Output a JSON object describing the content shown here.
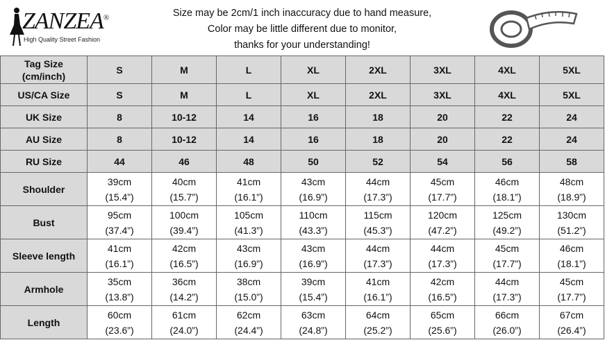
{
  "header": {
    "logo": "ZANZEA",
    "logo_mark": "®",
    "tagline": "High Quality Street Fashion",
    "notes": [
      "Size may be 2cm/1 inch inaccuracy due to hand measure,",
      "Color may be little different due to monitor,",
      "thanks for your understanding!"
    ]
  },
  "table": {
    "rows": [
      {
        "label": "Tag Size (cm/inch)",
        "cells": [
          "S",
          "M",
          "L",
          "XL",
          "2XL",
          "3XL",
          "4XL",
          "5XL"
        ]
      },
      {
        "label": "US/CA Size",
        "cells": [
          "S",
          "M",
          "L",
          "XL",
          "2XL",
          "3XL",
          "4XL",
          "5XL"
        ]
      },
      {
        "label": "UK Size",
        "cells": [
          "8",
          "10-12",
          "14",
          "16",
          "18",
          "20",
          "22",
          "24"
        ]
      },
      {
        "label": "AU Size",
        "cells": [
          "8",
          "10-12",
          "14",
          "16",
          "18",
          "20",
          "22",
          "24"
        ]
      },
      {
        "label": "RU Size",
        "cells": [
          "44",
          "46",
          "48",
          "50",
          "52",
          "54",
          "56",
          "58"
        ]
      },
      {
        "label": "Shoulder",
        "cells": [
          [
            "39cm",
            "(15.4”)"
          ],
          [
            "40cm",
            "(15.7”)"
          ],
          [
            "41cm",
            "(16.1”)"
          ],
          [
            "43cm",
            "(16.9”)"
          ],
          [
            "44cm",
            "(17.3”)"
          ],
          [
            "45cm",
            "(17.7”)"
          ],
          [
            "46cm",
            "(18.1”)"
          ],
          [
            "48cm",
            "(18.9”)"
          ]
        ]
      },
      {
        "label": "Bust",
        "cells": [
          [
            "95cm",
            "(37.4”)"
          ],
          [
            "100cm",
            "(39.4”)"
          ],
          [
            "105cm",
            "(41.3”)"
          ],
          [
            "110cm",
            "(43.3”)"
          ],
          [
            "115cm",
            "(45.3”)"
          ],
          [
            "120cm",
            "(47.2”)"
          ],
          [
            "125cm",
            "(49.2”)"
          ],
          [
            "130cm",
            "(51.2”)"
          ]
        ]
      },
      {
        "label": "Sleeve length",
        "cells": [
          [
            "41cm",
            "(16.1”)"
          ],
          [
            "42cm",
            "(16.5”)"
          ],
          [
            "43cm",
            "(16.9”)"
          ],
          [
            "43cm",
            "(16.9”)"
          ],
          [
            "44cm",
            "(17.3”)"
          ],
          [
            "44cm",
            "(17.3”)"
          ],
          [
            "45cm",
            "(17.7”)"
          ],
          [
            "46cm",
            "(18.1”)"
          ]
        ]
      },
      {
        "label": "Armhole",
        "cells": [
          [
            "35cm",
            "(13.8”)"
          ],
          [
            "36cm",
            "(14.2”)"
          ],
          [
            "38cm",
            "(15.0”)"
          ],
          [
            "39cm",
            "(15.4”)"
          ],
          [
            "41cm",
            "(16.1”)"
          ],
          [
            "42cm",
            "(16.5”)"
          ],
          [
            "44cm",
            "(17.3”)"
          ],
          [
            "45cm",
            "(17.7”)"
          ]
        ]
      },
      {
        "label": "Length",
        "cells": [
          [
            "60cm",
            "(23.6”)"
          ],
          [
            "61cm",
            "(24.0”)"
          ],
          [
            "62cm",
            "(24.4”)"
          ],
          [
            "63cm",
            "(24.8”)"
          ],
          [
            "64cm",
            "(25.2”)"
          ],
          [
            "65cm",
            "(25.6”)"
          ],
          [
            "66cm",
            "(26.0”)"
          ],
          [
            "67cm",
            "(26.4”)"
          ]
        ]
      }
    ]
  }
}
